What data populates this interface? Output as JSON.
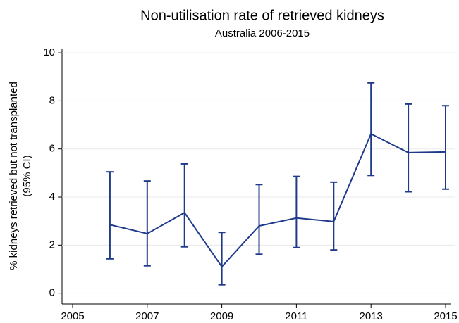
{
  "chart_data": {
    "type": "line",
    "title": "Non-utilisation rate of retrieved kidneys",
    "subtitle": "Australia 2006-2015",
    "ylabel": [
      "% kidneys retrieved but not transplanted",
      "(95% CI)"
    ],
    "x": [
      2006,
      2007,
      2008,
      2009,
      2010,
      2011,
      2012,
      2013,
      2014,
      2015
    ],
    "series": [
      {
        "color": "#1f3a8a",
        "values": [
          2.85,
          2.48,
          3.35,
          1.1,
          2.8,
          3.13,
          2.98,
          6.63,
          5.85,
          5.88
        ],
        "lower": [
          1.43,
          1.14,
          1.93,
          0.35,
          1.62,
          1.9,
          1.8,
          4.9,
          4.22,
          4.33
        ],
        "upper": [
          5.05,
          4.67,
          5.38,
          2.53,
          4.52,
          4.86,
          4.62,
          8.75,
          7.87,
          7.8
        ]
      }
    ],
    "xlim": [
      2005,
      2015
    ],
    "xticks": [
      2005,
      2007,
      2009,
      2011,
      2013,
      2015
    ],
    "ylim": [
      -0.45,
      10.15
    ],
    "yticks": [
      0,
      2,
      4,
      6,
      8,
      10
    ],
    "grid": true
  }
}
